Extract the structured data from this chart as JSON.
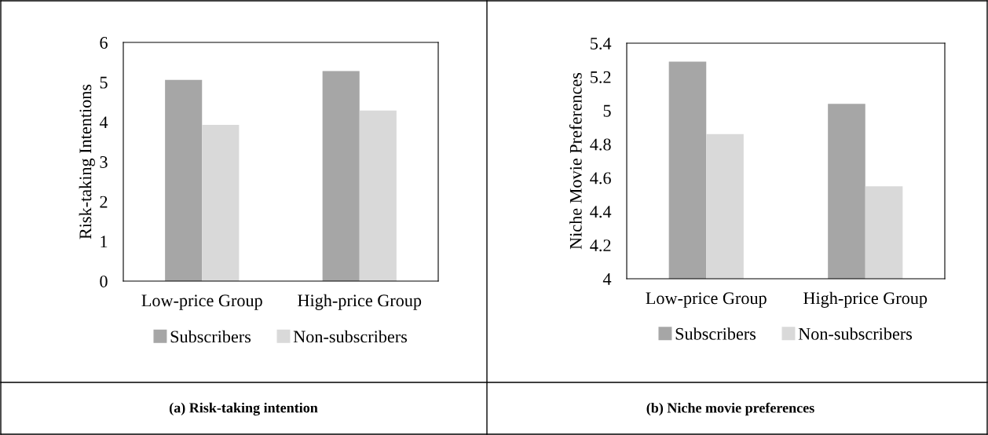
{
  "chart_data": [
    {
      "type": "bar",
      "title": "(a) Risk-taking intention",
      "ylabel": "Risk-taking Intentions",
      "categories": [
        "Low-price Group",
        "High-price Group"
      ],
      "series": [
        {
          "name": "Subscribers",
          "color": "#a6a6a6",
          "values": [
            5.06,
            5.28
          ]
        },
        {
          "name": "Non-subscribers",
          "color": "#d9d9d9",
          "values": [
            3.93,
            4.29
          ]
        }
      ],
      "ylim": [
        0,
        6
      ],
      "yticks": [
        0,
        1,
        2,
        3,
        4,
        5,
        6
      ],
      "grid": false,
      "legend": "bottom"
    },
    {
      "type": "bar",
      "title": "(b) Niche movie preferences",
      "ylabel": "Niche Movie Preferences",
      "categories": [
        "Low-price Group",
        "High-price Group"
      ],
      "series": [
        {
          "name": "Subscribers",
          "color": "#a6a6a6",
          "values": [
            5.29,
            5.04
          ]
        },
        {
          "name": "Non-subscribers",
          "color": "#d9d9d9",
          "values": [
            4.86,
            4.55
          ]
        }
      ],
      "ylim": [
        4,
        5.4
      ],
      "yticks": [
        4,
        {
          "value": 4.2,
          "label": "4.2"
        },
        {
          "value": 4.4,
          "label": "4.4"
        },
        {
          "value": 4.6,
          "label": "4.6"
        },
        {
          "value": 4.8,
          "label": "4.8"
        },
        5,
        {
          "value": 5.2,
          "label": "5.2"
        },
        {
          "value": 5.4,
          "label": "5.4"
        }
      ],
      "grid": false,
      "legend": "bottom"
    }
  ]
}
